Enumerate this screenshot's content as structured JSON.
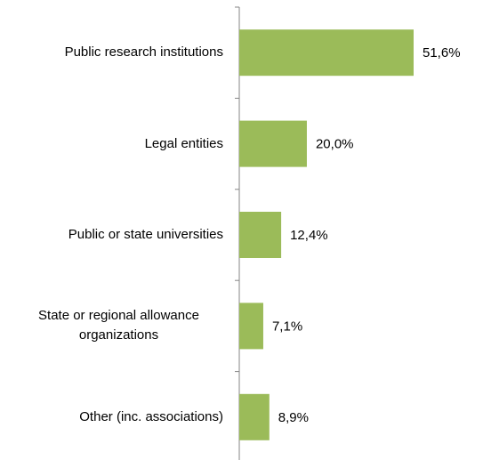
{
  "chart_data": {
    "type": "barh",
    "categories": [
      "Public research institutions",
      "Legal entities",
      "Public or state universities",
      "State or regional allowance organizations",
      "Other (inc. associations)"
    ],
    "values": [
      51.6,
      20.0,
      12.4,
      7.1,
      8.9
    ],
    "value_labels": [
      "51,6%",
      "20,0%",
      "12,4%",
      "7,1%",
      "8,9%"
    ],
    "color": "#9bbb59"
  }
}
